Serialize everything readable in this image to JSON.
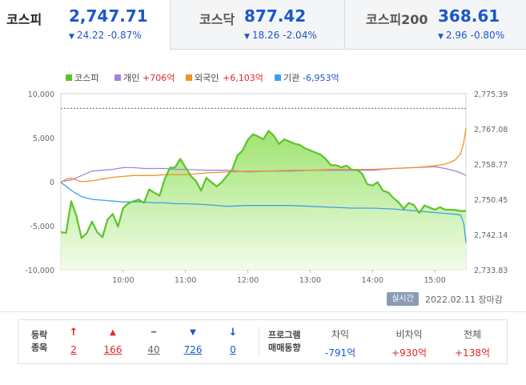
{
  "indices": [
    {
      "name": "코스피",
      "value": "2,747.71",
      "change": "24.22",
      "pct": "-0.87%",
      "arrow": "▼"
    },
    {
      "name": "코스닥",
      "value": "877.42",
      "change": "18.26",
      "pct": "-2.04%",
      "arrow": "▼"
    },
    {
      "name": "코스피200",
      "value": "368.61",
      "change": "2.96",
      "pct": "-0.80%",
      "arrow": "▼"
    }
  ],
  "chart_data": {
    "type": "area+line",
    "legend": [
      {
        "label": "코스피",
        "value": "",
        "color": "#5cc42a"
      },
      {
        "label": "개인",
        "value": "+706억",
        "color": "#a881db"
      },
      {
        "label": "외국인",
        "value": "+6,103억",
        "color": "#f0932d"
      },
      {
        "label": "기관",
        "value": "-6,953억",
        "color": "#3fa0e6"
      }
    ],
    "x_ticks": [
      "10:00",
      "11:00",
      "12:00",
      "13:00",
      "14:00",
      "15:00"
    ],
    "y_left_ticks": [
      "10,000",
      "5,000",
      "0",
      "-5,000",
      "-10,000"
    ],
    "y_right_ticks": [
      "2,775.39",
      "2,767.08",
      "2,758.77",
      "2,750.45",
      "2,742.14",
      "2,733.83"
    ],
    "x_range_minutes": [
      540,
      930
    ],
    "y_left_range": [
      -10000,
      10000
    ],
    "y_right_range": [
      2733.83,
      2775.39
    ],
    "prev_close": 2771.93,
    "kospi": {
      "name": "코스피",
      "t": [
        540,
        545,
        550,
        555,
        560,
        565,
        570,
        575,
        580,
        585,
        590,
        595,
        600,
        605,
        610,
        615,
        620,
        625,
        630,
        635,
        640,
        645,
        650,
        655,
        660,
        665,
        670,
        675,
        680,
        685,
        690,
        695,
        700,
        705,
        710,
        715,
        720,
        725,
        730,
        735,
        740,
        745,
        750,
        755,
        760,
        765,
        770,
        775,
        780,
        785,
        790,
        795,
        800,
        805,
        810,
        815,
        820,
        825,
        830,
        835,
        840,
        845,
        850,
        855,
        860,
        865,
        870,
        875,
        880,
        885,
        890,
        895,
        900,
        905,
        910,
        915,
        920,
        925,
        930
      ],
      "values": [
        2742.7,
        2742.5,
        2750.0,
        2746.5,
        2741.3,
        2742.5,
        2745.2,
        2742.7,
        2741.5,
        2745.7,
        2747.0,
        2744.0,
        2748.4,
        2749.5,
        2750.0,
        2750.4,
        2749.6,
        2752.8,
        2752.0,
        2751.3,
        2755.2,
        2757.9,
        2758.0,
        2760.0,
        2758.0,
        2756.0,
        2754.8,
        2752.5,
        2755.5,
        2754.5,
        2753.5,
        2754.5,
        2756.0,
        2757.5,
        2760.8,
        2762.0,
        2764.5,
        2765.8,
        2765.3,
        2764.6,
        2766.6,
        2765.5,
        2763.5,
        2764.6,
        2764.1,
        2763.6,
        2763.3,
        2762.5,
        2762.0,
        2761.5,
        2761.0,
        2760.0,
        2758.5,
        2758.5,
        2758.0,
        2758.4,
        2757.4,
        2757.4,
        2756.5,
        2754.0,
        2753.7,
        2754.5,
        2752.5,
        2752.1,
        2750.8,
        2749.8,
        2748.2,
        2749.6,
        2749.1,
        2747.2,
        2749.0,
        2748.5,
        2748.0,
        2748.6,
        2748.0,
        2748.0,
        2747.9,
        2747.7,
        2747.71
      ]
    },
    "series": [
      {
        "name": "개인",
        "color": "#a881db",
        "t": [
          540,
          550,
          560,
          570,
          580,
          590,
          600,
          610,
          620,
          630,
          640,
          650,
          660,
          680,
          700,
          720,
          740,
          760,
          780,
          800,
          820,
          840,
          860,
          880,
          900,
          910,
          920,
          925,
          930
        ],
        "values": [
          0,
          200,
          700,
          1200,
          1300,
          1400,
          1600,
          1600,
          1500,
          1500,
          1500,
          1400,
          1400,
          1300,
          1300,
          1100,
          1200,
          1200,
          1300,
          1300,
          1300,
          1300,
          1500,
          1600,
          1700,
          1500,
          1200,
          1000,
          706
        ]
      },
      {
        "name": "외국인",
        "color": "#f0932d",
        "t": [
          540,
          545,
          550,
          560,
          570,
          580,
          590,
          600,
          610,
          620,
          630,
          640,
          650,
          660,
          670,
          680,
          700,
          720,
          740,
          760,
          780,
          800,
          820,
          840,
          860,
          880,
          900,
          910,
          915,
          920,
          925,
          928,
          930
        ],
        "values": [
          -100,
          300,
          400,
          0,
          100,
          300,
          500,
          600,
          700,
          700,
          700,
          800,
          800,
          800,
          900,
          1000,
          1100,
          1200,
          1200,
          1300,
          1300,
          1400,
          1400,
          1400,
          1500,
          1600,
          1800,
          2000,
          2200,
          2500,
          3200,
          4500,
          6103
        ]
      },
      {
        "name": "기관",
        "color": "#3fa0e6",
        "t": [
          540,
          545,
          550,
          560,
          570,
          580,
          590,
          600,
          610,
          620,
          630,
          640,
          650,
          660,
          680,
          700,
          720,
          740,
          760,
          780,
          800,
          820,
          840,
          860,
          880,
          900,
          910,
          920,
          925,
          928,
          930
        ],
        "values": [
          -100,
          -500,
          -1000,
          -1700,
          -2000,
          -2100,
          -2200,
          -2300,
          -2300,
          -2300,
          -2400,
          -2400,
          -2500,
          -2500,
          -2600,
          -2800,
          -2700,
          -2700,
          -2700,
          -2800,
          -2900,
          -3000,
          -3000,
          -3100,
          -3300,
          -3500,
          -3600,
          -3700,
          -3800,
          -4800,
          -6953
        ]
      }
    ]
  },
  "realtime_label": "실시간",
  "date_label": "2022.02.11  장마감",
  "stats": {
    "title_line1": "등락",
    "title_line2": "종목",
    "items": [
      {
        "icon": "↑",
        "value": "2",
        "kind": "up"
      },
      {
        "icon": "▲",
        "value": "166",
        "kind": "up"
      },
      {
        "icon": "━",
        "value": "40",
        "kind": "flat"
      },
      {
        "icon": "▼",
        "value": "726",
        "kind": "down"
      },
      {
        "icon": "↓",
        "value": "0",
        "kind": "down"
      }
    ],
    "program_line1": "프로그램",
    "program_line2": "매매동향",
    "program": [
      {
        "head": "차익",
        "value": "-791억",
        "kind": "down"
      },
      {
        "head": "비차익",
        "value": "+930억",
        "kind": "up"
      },
      {
        "head": "전체",
        "value": "+138억",
        "kind": "up"
      }
    ]
  },
  "colors": {
    "up": "#e0282c",
    "down": "#1c57c9",
    "kospi_fill_top": "#8fdf5a",
    "kospi_fill_bottom": "#f1fbe8"
  }
}
